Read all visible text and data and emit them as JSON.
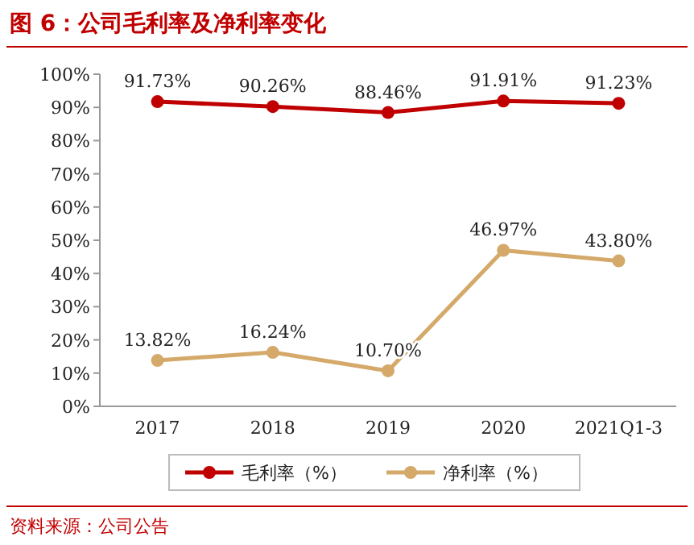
{
  "chart_data": {
    "type": "line",
    "title": "图 6：公司毛利率及净利率变化",
    "annotations": [
      "资料来源：公司公告"
    ],
    "categories": [
      "2017",
      "2018",
      "2019",
      "2020",
      "2021Q1-3"
    ],
    "series": [
      {
        "name": "毛利率（%）",
        "color": "#c00000",
        "values": [
          91.73,
          90.26,
          88.46,
          91.91,
          91.23
        ],
        "value_labels": [
          "91.73%",
          "90.26%",
          "88.46%",
          "91.91%",
          "91.23%"
        ]
      },
      {
        "name": "净利率（%）",
        "color": "#d4a96a",
        "values": [
          13.82,
          16.24,
          10.7,
          46.97,
          43.8
        ],
        "value_labels": [
          "13.82%",
          "16.24%",
          "10.70%",
          "46.97%",
          "43.80%"
        ]
      }
    ],
    "ylim": [
      0,
      100
    ],
    "yticks": [
      {
        "value": 0,
        "label": "0%"
      },
      {
        "value": 10,
        "label": "10%"
      },
      {
        "value": 20,
        "label": "20%"
      },
      {
        "value": 30,
        "label": "30%"
      },
      {
        "value": 40,
        "label": "40%"
      },
      {
        "value": 50,
        "label": "50%"
      },
      {
        "value": 60,
        "label": "60%"
      },
      {
        "value": 70,
        "label": "70%"
      },
      {
        "value": 80,
        "label": "80%"
      },
      {
        "value": 90,
        "label": "90%"
      },
      {
        "value": 100,
        "label": "100%"
      }
    ],
    "legend": "bottom",
    "marker": "circle",
    "line_style": "solid",
    "grid": false
  }
}
